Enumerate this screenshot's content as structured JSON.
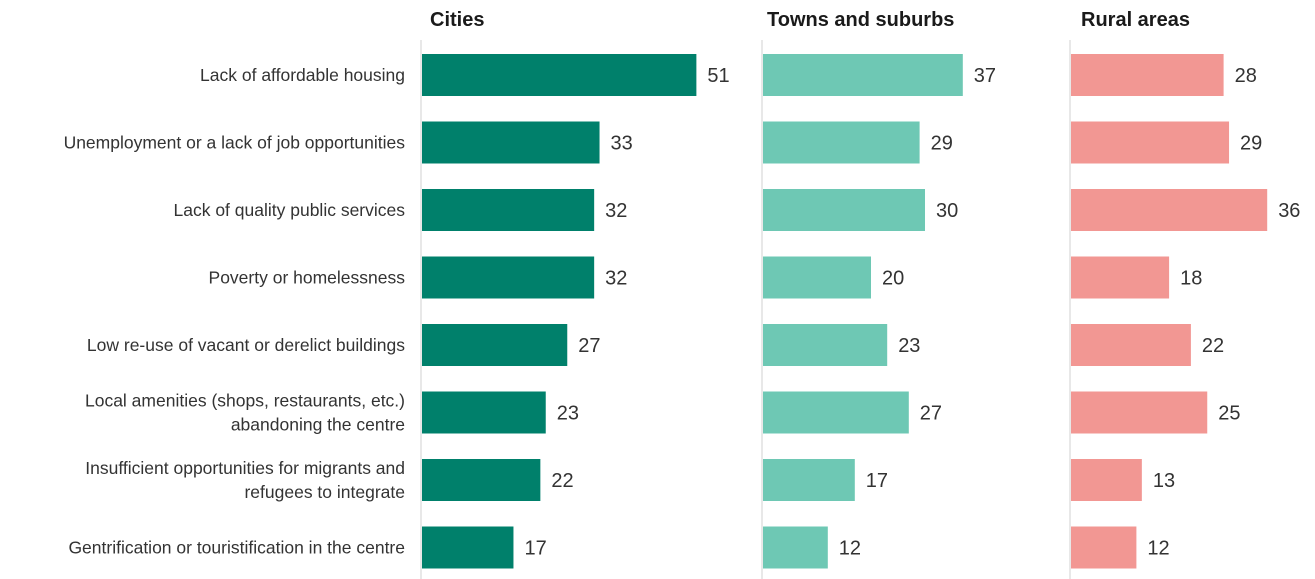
{
  "chart_data": {
    "type": "bar",
    "orientation": "horizontal",
    "categories": [
      [
        "Lack of affordable housing"
      ],
      [
        "Unemployment or a lack of job opportunities"
      ],
      [
        "Lack of quality public services"
      ],
      [
        "Poverty or homelessness"
      ],
      [
        "Low re-use of vacant or derelict buildings"
      ],
      [
        "Local amenities (shops, restaurants, etc.)",
        "abandoning the centre"
      ],
      [
        "Insufficient opportunities for migrants and",
        "refugees to integrate"
      ],
      [
        "Gentrification or touristification in the centre"
      ]
    ],
    "series": [
      {
        "name": "Cities",
        "color": "#00806b",
        "values": [
          51,
          33,
          32,
          32,
          27,
          23,
          22,
          17
        ]
      },
      {
        "name": "Towns and suburbs",
        "color": "#6ec8b4",
        "values": [
          37,
          29,
          30,
          20,
          23,
          27,
          17,
          12
        ]
      },
      {
        "name": "Rural areas",
        "color": "#f29793",
        "values": [
          28,
          29,
          36,
          18,
          22,
          25,
          13,
          12
        ]
      }
    ],
    "axis_color": "#d0d0d0",
    "grid": false
  }
}
